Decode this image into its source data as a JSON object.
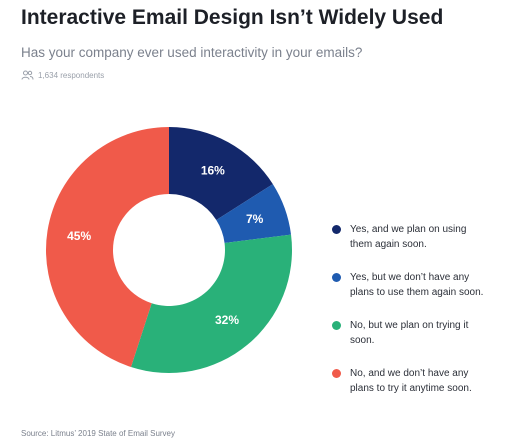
{
  "header": {
    "title": "Interactive Email Design Isn’t Widely Used",
    "subtitle": "Has your company ever used interactivity in your emails?",
    "respondents": "1,634 respondents"
  },
  "footer": {
    "source": "Source: Litmus’ 2019 State of Email Survey"
  },
  "icons": {
    "respondents": "people-icon"
  },
  "chart_data": {
    "type": "pie",
    "style": "donut",
    "title": "Interactive Email Design Isn’t Widely Used",
    "subtitle": "Has your company ever used interactivity in your emails?",
    "unit": "%",
    "legend_position": "right",
    "slices": [
      {
        "label": "Yes, and we plan on using them again soon.",
        "value": 16,
        "display": "16%",
        "color": "#13286b"
      },
      {
        "label": "Yes, but we don’t have any plans to use them again soon.",
        "value": 7,
        "display": "7%",
        "color": "#1f5bb0"
      },
      {
        "label": "No, but we plan on trying it soon.",
        "value": 32,
        "display": "32%",
        "color": "#29b179"
      },
      {
        "label": "No, and we don’t have any plans to try it anytime soon.",
        "value": 45,
        "display": "45%",
        "color": "#f05a4a"
      }
    ]
  }
}
